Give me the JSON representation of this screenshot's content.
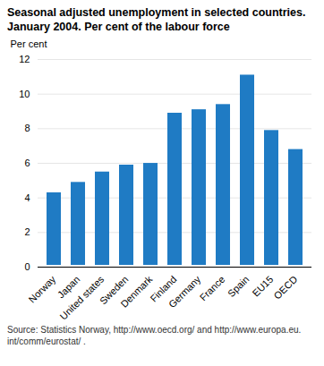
{
  "chart_data": {
    "type": "bar",
    "title": "Seasonal adjusted unemployment in selected countries. January 2004. Per cent of the labour force",
    "y_label": "Per cent",
    "source": "Source: Statistics Norway, http://www.oecd.org/ and http://www.europa.eu.int/comm/eurostat/ .",
    "categories": [
      "Norway",
      "Japan",
      "United states",
      "Sweden",
      "Denmark",
      "Finland",
      "Germany",
      "France",
      "Spain",
      "EU15",
      "OECD"
    ],
    "values": [
      4.4,
      5.0,
      5.6,
      6.0,
      6.1,
      9.0,
      9.2,
      9.5,
      11.2,
      8.0,
      6.9
    ],
    "color": "#1f7bc4",
    "ylim": [
      0,
      12
    ],
    "yticks": [
      0,
      2,
      4,
      6,
      8,
      10,
      12
    ],
    "grid": true
  }
}
